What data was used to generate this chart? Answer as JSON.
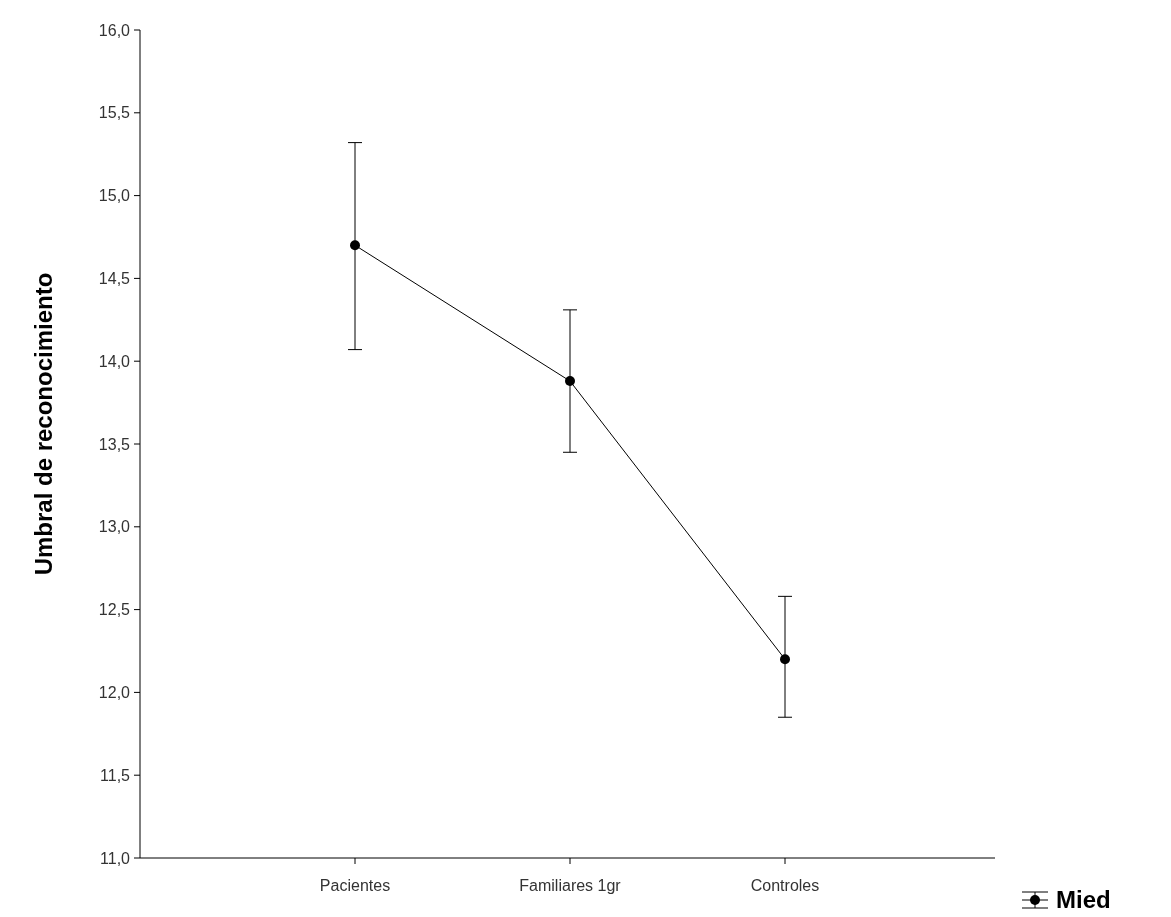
{
  "chart_data": {
    "type": "line",
    "ylabel": "Umbral de reconocimiento",
    "categories": [
      "Pacientes",
      "Familiares 1gr",
      "Controles"
    ],
    "series": [
      {
        "name": "Mied",
        "color": "#000000",
        "values": [
          14.7,
          13.88,
          12.2
        ],
        "errors": [
          [
            14.07,
            15.32
          ],
          [
            13.45,
            14.31
          ],
          [
            11.85,
            12.58
          ]
        ]
      }
    ],
    "ylim": [
      11,
      16
    ],
    "yticks": [
      {
        "value": 11,
        "label": "11,0"
      },
      {
        "value": 11.5,
        "label": "11,5"
      },
      {
        "value": 12,
        "label": "12,0"
      },
      {
        "value": 12.5,
        "label": "12,5"
      },
      {
        "value": 13,
        "label": "13,0"
      },
      {
        "value": 13.5,
        "label": "13,5"
      },
      {
        "value": 14,
        "label": "14,0"
      },
      {
        "value": 14.5,
        "label": "14,5"
      },
      {
        "value": 15,
        "label": "15,0"
      },
      {
        "value": 15.5,
        "label": "15,5"
      },
      {
        "value": 16,
        "label": "16,0"
      }
    ],
    "marker": "circle",
    "legend": "bottom right",
    "grid": false
  }
}
